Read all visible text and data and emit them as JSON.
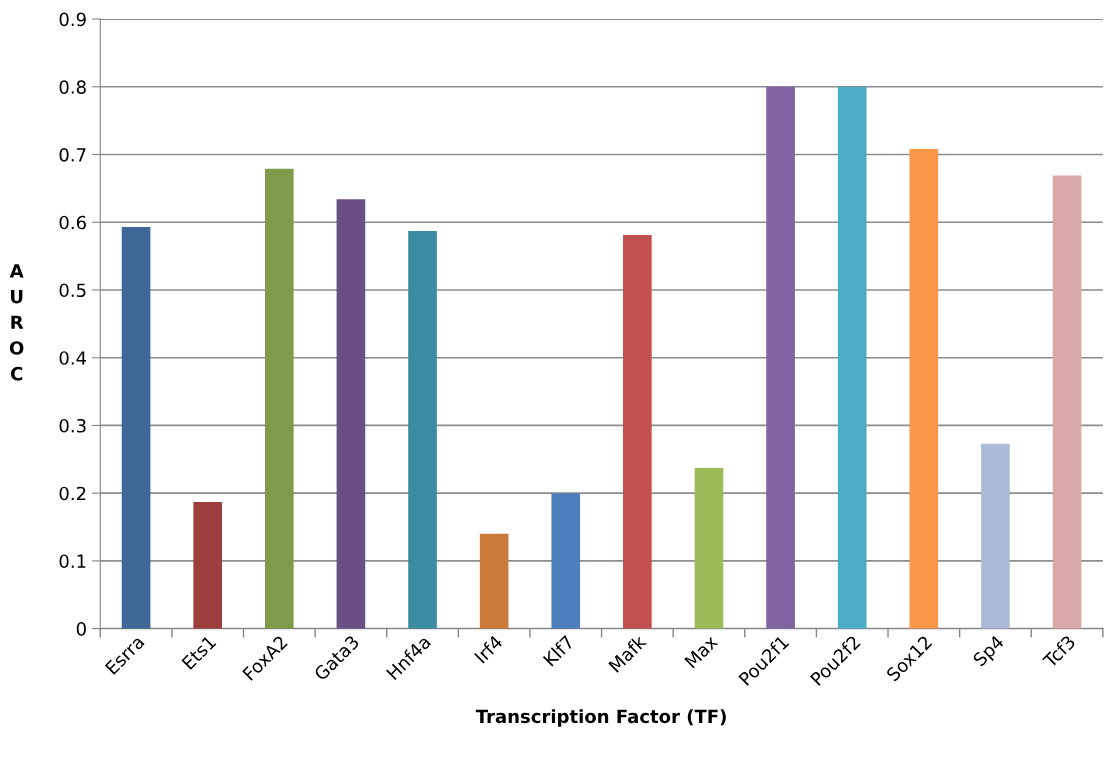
{
  "chart_data": {
    "type": "bar",
    "xlabel": "Transcription Factor (TF)",
    "ylabel": "AUROC",
    "categories": [
      "Esrra",
      "Ets1",
      "FoxA2",
      "Gata3",
      "Hnf4a",
      "Irf4",
      "Klf7",
      "Mafk",
      "Max",
      "Pou2f1",
      "Pou2f2",
      "Sox12",
      "Sp4",
      "Tcf3"
    ],
    "values": [
      0.593,
      0.187,
      0.679,
      0.634,
      0.587,
      0.14,
      0.2,
      0.581,
      0.237,
      0.8,
      0.8,
      0.708,
      0.273,
      0.669
    ],
    "colors": [
      "#3f6899",
      "#9c3f3e",
      "#7f9a48",
      "#6a4f87",
      "#3b8ca1",
      "#cb7a3a",
      "#4d7fbd",
      "#c0504d",
      "#9bbb59",
      "#8064a2",
      "#4bacc6",
      "#f79646",
      "#aabad7",
      "#d9a9a9"
    ],
    "ylim": [
      0,
      0.9
    ],
    "yticks": [
      0,
      0.1,
      0.2,
      0.3,
      0.4,
      0.5,
      0.6,
      0.7,
      0.8,
      0.9
    ],
    "grid": "y",
    "legend": false
  }
}
